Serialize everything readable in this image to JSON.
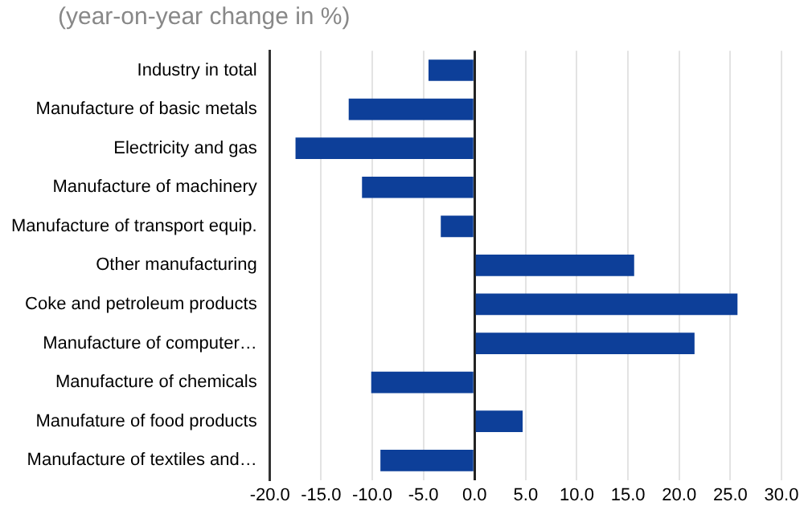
{
  "chart_data": {
    "type": "bar",
    "orientation": "horizontal",
    "subtitle": "(year-on-year change in %)",
    "categories": [
      "Industry in total",
      "Manufacture of basic metals",
      "Electricity and gas",
      "Manufacture of machinery",
      "Manufacture of transport equip.",
      "Other manufacturing",
      "Coke and petroleum products",
      "Manufacture of computer…",
      "Manufacture of chemicals",
      "Manufature of food products",
      "Manufacture of textiles and…"
    ],
    "values": [
      -4.5,
      -12.3,
      -17.5,
      -11.0,
      -3.3,
      15.6,
      25.7,
      21.5,
      -10.1,
      4.7,
      -9.2
    ],
    "color": "#0d3f99",
    "xlim": [
      -20,
      30
    ],
    "xticks": [
      {
        "value": -20,
        "label": "-20.0"
      },
      {
        "value": -15,
        "label": "-15.0"
      },
      {
        "value": -10,
        "label": "-10.0"
      },
      {
        "value": -5,
        "label": "-5.0"
      },
      {
        "value": 0,
        "label": "0.0"
      },
      {
        "value": 5,
        "label": "5.0"
      },
      {
        "value": 10,
        "label": "10.0"
      },
      {
        "value": 15,
        "label": "15.0"
      },
      {
        "value": 20,
        "label": "20.0"
      },
      {
        "value": 25,
        "label": "25.0"
      },
      {
        "value": 30,
        "label": "30.0"
      }
    ],
    "grid": "x",
    "legend": false
  }
}
